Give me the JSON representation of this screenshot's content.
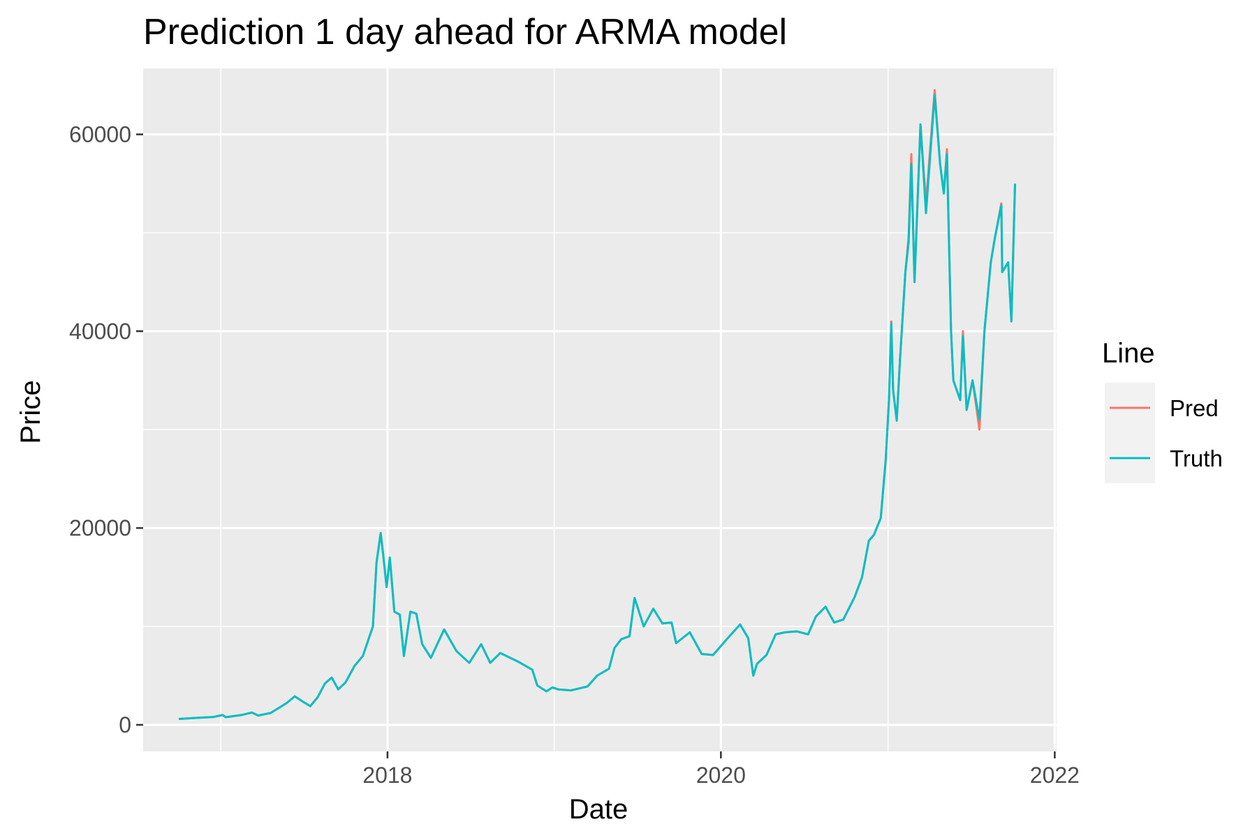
{
  "chart_data": {
    "type": "line",
    "title": "Prediction 1 day ahead for ARMA model",
    "xlabel": "Date",
    "ylabel": "Price",
    "x_type": "date",
    "xlim": [
      "2016-07-15",
      "2022-01-05"
    ],
    "ylim": [
      -2700,
      66700
    ],
    "x_ticks": [
      {
        "date": "2018-01-01",
        "label": "2018"
      },
      {
        "date": "2020-01-01",
        "label": "2020"
      },
      {
        "date": "2022-01-01",
        "label": "2022"
      }
    ],
    "x_minor_ticks": [
      "2017-01-01",
      "2019-01-01",
      "2021-01-01"
    ],
    "y_ticks": [
      {
        "value": 0,
        "label": "0"
      },
      {
        "value": 20000,
        "label": "20000"
      },
      {
        "value": 40000,
        "label": "40000"
      },
      {
        "value": 60000,
        "label": "60000"
      }
    ],
    "y_minor_ticks": [
      10000,
      30000,
      50000
    ],
    "grid": true,
    "panel_background": "#ebebeb",
    "grid_color": "#ffffff",
    "legend": {
      "title": "Line",
      "position": "right",
      "entries": [
        {
          "label": "Pred",
          "color": "#f8766d"
        },
        {
          "label": "Truth",
          "color": "#00bfc4"
        }
      ]
    },
    "series": [
      {
        "name": "Truth",
        "color": "#00bfc4",
        "x": [
          "2016-10-01",
          "2016-11-15",
          "2016-12-15",
          "2017-01-05",
          "2017-01-12",
          "2017-02-15",
          "2017-03-10",
          "2017-03-24",
          "2017-04-20",
          "2017-05-25",
          "2017-06-12",
          "2017-06-28",
          "2017-07-16",
          "2017-08-01",
          "2017-08-17",
          "2017-09-01",
          "2017-09-15",
          "2017-10-01",
          "2017-10-21",
          "2017-11-08",
          "2017-11-30",
          "2017-12-08",
          "2017-12-17",
          "2017-12-22",
          "2017-12-30",
          "2018-01-06",
          "2018-01-16",
          "2018-01-28",
          "2018-02-06",
          "2018-02-20",
          "2018-03-05",
          "2018-03-18",
          "2018-04-06",
          "2018-05-05",
          "2018-06-01",
          "2018-06-29",
          "2018-07-25",
          "2018-08-14",
          "2018-09-05",
          "2018-10-15",
          "2018-11-14",
          "2018-11-25",
          "2018-12-15",
          "2018-12-28",
          "2019-01-10",
          "2019-02-07",
          "2019-03-15",
          "2019-04-05",
          "2019-05-01",
          "2019-05-13",
          "2019-05-28",
          "2019-06-15",
          "2019-06-26",
          "2019-07-16",
          "2019-08-06",
          "2019-08-26",
          "2019-09-15",
          "2019-09-25",
          "2019-10-25",
          "2019-11-20",
          "2019-12-15",
          "2020-01-14",
          "2020-02-12",
          "2020-03-01",
          "2020-03-12",
          "2020-03-20",
          "2020-04-10",
          "2020-04-30",
          "2020-05-20",
          "2020-06-15",
          "2020-07-10",
          "2020-07-27",
          "2020-08-17",
          "2020-09-05",
          "2020-09-25",
          "2020-10-20",
          "2020-11-05",
          "2020-11-20",
          "2020-12-01",
          "2020-12-16",
          "2020-12-27",
          "2021-01-03",
          "2021-01-08",
          "2021-01-12",
          "2021-01-20",
          "2021-01-27",
          "2021-02-08",
          "2021-02-15",
          "2021-02-21",
          "2021-02-28",
          "2021-03-13",
          "2021-03-25",
          "2021-04-13",
          "2021-04-25",
          "2021-05-03",
          "2021-05-10",
          "2021-05-19",
          "2021-05-24",
          "2021-06-08",
          "2021-06-14",
          "2021-06-22",
          "2021-07-05",
          "2021-07-20",
          "2021-07-31",
          "2021-08-14",
          "2021-08-23",
          "2021-09-06",
          "2021-09-08",
          "2021-09-21",
          "2021-09-28",
          "2021-10-06"
        ],
        "values": [
          600,
          730,
          790,
          1000,
          780,
          1000,
          1250,
          950,
          1200,
          2200,
          2900,
          2400,
          1900,
          2800,
          4200,
          4800,
          3600,
          4300,
          6000,
          7000,
          10000,
          16500,
          19500,
          17500,
          14000,
          17000,
          11500,
          11200,
          7000,
          11500,
          11300,
          8200,
          6800,
          9700,
          7500,
          6300,
          8200,
          6300,
          7300,
          6400,
          5600,
          4000,
          3400,
          3800,
          3600,
          3500,
          3900,
          5000,
          5700,
          7800,
          8700,
          9000,
          12900,
          10000,
          11800,
          10300,
          10400,
          8300,
          9400,
          7200,
          7100,
          8700,
          10200,
          8800,
          5000,
          6200,
          7100,
          9200,
          9400,
          9500,
          9200,
          11000,
          12000,
          10400,
          10700,
          13000,
          15000,
          18700,
          19300,
          21000,
          27000,
          33000,
          40800,
          34000,
          30900,
          37000,
          46000,
          49000,
          57000,
          45000,
          61000,
          52000,
          64000,
          57000,
          54000,
          58000,
          40000,
          35000,
          33000,
          39500,
          32000,
          35000,
          31000,
          40000,
          47000,
          49500,
          52800,
          46000,
          47000,
          41000,
          55000
        ]
      },
      {
        "name": "Pred",
        "color": "#f8766d",
        "x": [
          "2016-10-01",
          "2016-11-15",
          "2016-12-15",
          "2017-01-05",
          "2017-01-12",
          "2017-02-15",
          "2017-03-10",
          "2017-03-24",
          "2017-04-20",
          "2017-05-25",
          "2017-06-12",
          "2017-06-28",
          "2017-07-16",
          "2017-08-01",
          "2017-08-17",
          "2017-09-01",
          "2017-09-15",
          "2017-10-01",
          "2017-10-21",
          "2017-11-08",
          "2017-11-30",
          "2017-12-08",
          "2017-12-17",
          "2017-12-22",
          "2017-12-30",
          "2018-01-06",
          "2018-01-16",
          "2018-01-28",
          "2018-02-06",
          "2018-02-20",
          "2018-03-05",
          "2018-03-18",
          "2018-04-06",
          "2018-05-05",
          "2018-06-01",
          "2018-06-29",
          "2018-07-25",
          "2018-08-14",
          "2018-09-05",
          "2018-10-15",
          "2018-11-14",
          "2018-11-25",
          "2018-12-15",
          "2018-12-28",
          "2019-01-10",
          "2019-02-07",
          "2019-03-15",
          "2019-04-05",
          "2019-05-01",
          "2019-05-13",
          "2019-05-28",
          "2019-06-15",
          "2019-06-26",
          "2019-07-16",
          "2019-08-06",
          "2019-08-26",
          "2019-09-15",
          "2019-09-25",
          "2019-10-25",
          "2019-11-20",
          "2019-12-15",
          "2020-01-14",
          "2020-02-12",
          "2020-03-01",
          "2020-03-12",
          "2020-03-20",
          "2020-04-10",
          "2020-04-30",
          "2020-05-20",
          "2020-06-15",
          "2020-07-10",
          "2020-07-27",
          "2020-08-17",
          "2020-09-05",
          "2020-09-25",
          "2020-10-20",
          "2020-11-05",
          "2020-11-20",
          "2020-12-01",
          "2020-12-16",
          "2020-12-27",
          "2021-01-03",
          "2021-01-08",
          "2021-01-12",
          "2021-01-20",
          "2021-01-27",
          "2021-02-08",
          "2021-02-15",
          "2021-02-21",
          "2021-02-28",
          "2021-03-13",
          "2021-03-25",
          "2021-04-13",
          "2021-04-25",
          "2021-05-03",
          "2021-05-10",
          "2021-05-19",
          "2021-05-24",
          "2021-06-08",
          "2021-06-14",
          "2021-06-22",
          "2021-07-05",
          "2021-07-20",
          "2021-07-31",
          "2021-08-14",
          "2021-08-23",
          "2021-09-06",
          "2021-09-08",
          "2021-09-21",
          "2021-09-28",
          "2021-10-06"
        ],
        "values": [
          600,
          730,
          790,
          1000,
          780,
          1000,
          1250,
          950,
          1200,
          2200,
          2900,
          2400,
          1900,
          2800,
          4200,
          4800,
          3600,
          4300,
          6000,
          7000,
          10000,
          16500,
          19500,
          17500,
          14000,
          17000,
          11500,
          11200,
          7000,
          11500,
          11300,
          8200,
          6800,
          9700,
          7500,
          6300,
          8200,
          6300,
          7300,
          6400,
          5600,
          4000,
          3400,
          3800,
          3600,
          3500,
          3900,
          5000,
          5700,
          7800,
          8700,
          9000,
          12900,
          10000,
          11800,
          10300,
          10400,
          8300,
          9400,
          7200,
          7100,
          8700,
          10200,
          8800,
          5000,
          6200,
          7100,
          9200,
          9400,
          9500,
          9200,
          11000,
          12000,
          10400,
          10700,
          13000,
          15000,
          18700,
          19300,
          21000,
          27000,
          33000,
          41000,
          34000,
          31000,
          37000,
          46000,
          49500,
          58000,
          45000,
          61000,
          53000,
          64500,
          57000,
          54000,
          58500,
          40000,
          35000,
          33000,
          40000,
          32000,
          35000,
          30000,
          40000,
          47000,
          49500,
          53000,
          46000,
          47000,
          41000,
          55000
        ]
      }
    ]
  }
}
